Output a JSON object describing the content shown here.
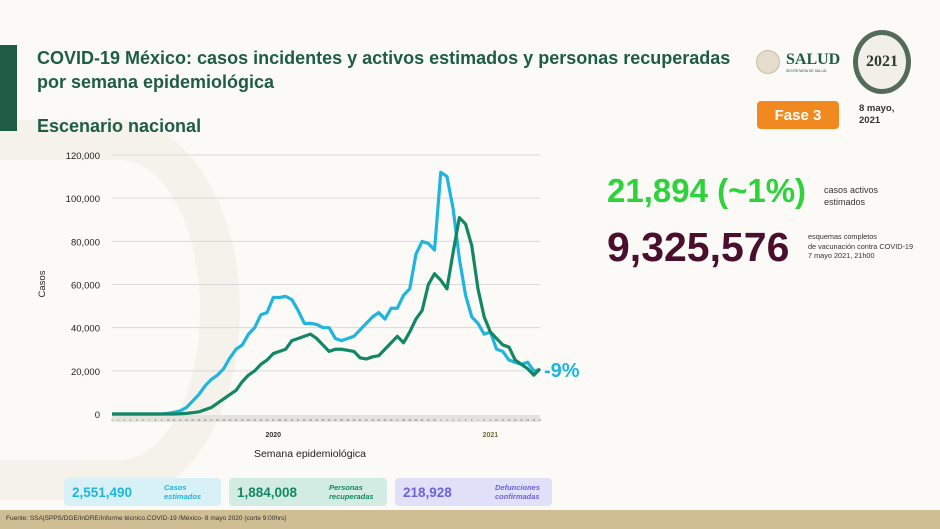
{
  "header": {
    "title": "COVID-19 México: casos incidentes y activos estimados y personas recuperadas por semana epidemiológica",
    "subtitle": "Escenario nacional",
    "logo_text": "SALUD",
    "logo_sub": "SECRETARÍA DE SALUD",
    "logo2021": "2021",
    "phase": "Fase 3",
    "date_line1": "8 mayo,",
    "date_line2": "2021"
  },
  "stats": {
    "active_value": "21,894 (~1%)",
    "active_label": "casos activos estimados",
    "vacc_value": "9,325,576",
    "vacc_line1": "esquemas completos",
    "vacc_line2": "de vacunación contra COVID-19",
    "vacc_line3": "7 mayo 2021, 21h00"
  },
  "summary": [
    {
      "value": "2,551,490",
      "label1": "Casos",
      "label2": "estimados"
    },
    {
      "value": "1,884,008",
      "label1": "Personas",
      "label2": "recuperadas"
    },
    {
      "value": "218,928",
      "label1": "Defunciones",
      "label2": "confirmadas"
    }
  ],
  "footer": "Fuente: SSA|SPPS/DGE/InDRE/Informe técnico.COVID-19 /México- 8 mayo 2020 (corte 9:00hrs)",
  "colors": {
    "blue": "#1fb5de",
    "green": "#138763",
    "green_big": "#2fd23a",
    "maroon": "#4a0f2c",
    "orange": "#f08a20"
  },
  "chart_data": {
    "type": "line",
    "xlabel": "Semana epidemiológica",
    "ylabel": "Casos",
    "ylim": [
      0,
      120000
    ],
    "yticks": [
      "0",
      "20,000",
      "40,000",
      "60,000",
      "80,000",
      "100,000",
      "120,000"
    ],
    "year_labels": [
      "2020",
      "2021"
    ],
    "weeks_2020": [
      1,
      2,
      3,
      4,
      5,
      6,
      7,
      8,
      9,
      10,
      11,
      12,
      13,
      14,
      15,
      16,
      17,
      18,
      19,
      20,
      21,
      22,
      23,
      24,
      25,
      26,
      27,
      28,
      29,
      30,
      31,
      32,
      33,
      34,
      35,
      36,
      37,
      38,
      39,
      40,
      41,
      42,
      43,
      44,
      45,
      46,
      47,
      48,
      49,
      50,
      51,
      52,
      53
    ],
    "weeks_2021": [
      1,
      2,
      3,
      4,
      5,
      6,
      7,
      8,
      9,
      10,
      11,
      12,
      13,
      14,
      15,
      16,
      17
    ],
    "annotation": "-9%",
    "series": [
      {
        "color": "#1fb5de",
        "values": [
          0,
          0,
          0,
          0,
          0,
          0,
          0,
          0,
          0,
          300,
          800,
          1500,
          3000,
          6000,
          9000,
          13000,
          16000,
          18000,
          21000,
          26000,
          30000,
          32000,
          37000,
          40000,
          46000,
          47000,
          54000,
          54000,
          54500,
          53000,
          48000,
          42000,
          42000,
          41500,
          40000,
          40000,
          35000,
          34000,
          35000,
          36000,
          39000,
          42000,
          45000,
          47000,
          44000,
          49000,
          49000,
          55000,
          58000,
          74000,
          80000,
          79000,
          76000,
          112000,
          110000,
          95000,
          72000,
          55000,
          45000,
          42000,
          37000,
          38000,
          30000,
          29000,
          25000,
          24000,
          23000,
          24000,
          20000,
          20500
        ]
      },
      {
        "color": "#138763",
        "values": [
          0,
          0,
          0,
          0,
          0,
          0,
          0,
          0,
          0,
          0,
          0,
          100,
          300,
          600,
          1000,
          2000,
          3000,
          5000,
          7000,
          9000,
          11000,
          15000,
          18000,
          20000,
          23000,
          25000,
          28000,
          29000,
          30000,
          34000,
          35000,
          36000,
          37000,
          35000,
          32000,
          29000,
          30000,
          30000,
          29500,
          29000,
          26000,
          25500,
          26500,
          27000,
          30000,
          33000,
          36000,
          33000,
          38000,
          44000,
          48000,
          60000,
          65000,
          62000,
          58000,
          75000,
          91000,
          88000,
          78000,
          58000,
          45000,
          38000,
          35000,
          32000,
          31000,
          25000,
          23000,
          21000,
          18000,
          21000
        ]
      }
    ]
  }
}
